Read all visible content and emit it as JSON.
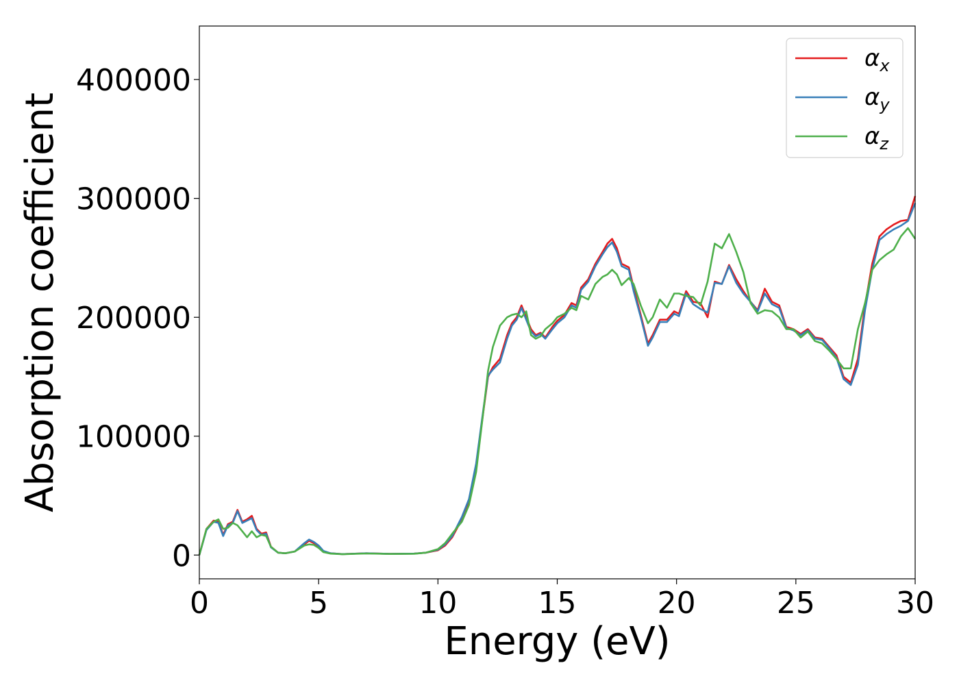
{
  "chart_data": {
    "type": "line",
    "xlabel": "Energy (eV)",
    "ylabel": "Absorption coefficient",
    "xlim": [
      0,
      30
    ],
    "ylim": [
      -20000,
      445000
    ],
    "xticks": [
      0,
      5,
      10,
      15,
      20,
      25,
      30
    ],
    "yticks": [
      0,
      100000,
      200000,
      300000,
      400000
    ],
    "grid": false,
    "legend_position": "top-right",
    "series": [
      {
        "name": "α",
        "subscript": "x",
        "color": "#e41a1c",
        "x": [
          0,
          0.3,
          0.6,
          0.8,
          1.0,
          1.2,
          1.4,
          1.6,
          1.8,
          2.0,
          2.2,
          2.4,
          2.6,
          2.8,
          3.0,
          3.3,
          3.6,
          4.0,
          4.4,
          4.6,
          4.8,
          5.0,
          5.2,
          5.5,
          6.0,
          7.0,
          8.0,
          9.0,
          9.5,
          10.0,
          10.3,
          10.6,
          11.0,
          11.3,
          11.6,
          11.9,
          12.1,
          12.3,
          12.6,
          12.9,
          13.1,
          13.3,
          13.5,
          13.7,
          13.9,
          14.1,
          14.3,
          14.5,
          14.8,
          15.0,
          15.3,
          15.6,
          15.8,
          16.0,
          16.3,
          16.6,
          16.9,
          17.1,
          17.3,
          17.5,
          17.7,
          18.0,
          18.2,
          18.5,
          18.8,
          19.0,
          19.3,
          19.6,
          19.9,
          20.1,
          20.4,
          20.7,
          21.0,
          21.3,
          21.6,
          21.9,
          22.2,
          22.5,
          22.8,
          23.1,
          23.4,
          23.7,
          24.0,
          24.3,
          24.6,
          24.9,
          25.2,
          25.5,
          25.8,
          26.1,
          26.4,
          26.7,
          27.0,
          27.3,
          27.6,
          27.9,
          28.2,
          28.5,
          28.8,
          29.1,
          29.4,
          29.7,
          30.0
        ],
        "values": [
          0,
          22000,
          29000,
          28000,
          17000,
          26000,
          28000,
          38000,
          28000,
          30000,
          33000,
          22000,
          18000,
          19000,
          7000,
          2000,
          1500,
          3000,
          9000,
          12000,
          10000,
          7000,
          3000,
          1500,
          800,
          1500,
          1000,
          1200,
          2000,
          4000,
          8000,
          15000,
          30000,
          45000,
          75000,
          120000,
          150000,
          158000,
          165000,
          185000,
          195000,
          200000,
          210000,
          200000,
          190000,
          185000,
          187000,
          183000,
          192000,
          197000,
          202000,
          212000,
          210000,
          225000,
          232000,
          245000,
          255000,
          262000,
          266000,
          258000,
          245000,
          242000,
          225000,
          202000,
          178000,
          185000,
          198000,
          198000,
          205000,
          203000,
          222000,
          213000,
          212000,
          200000,
          230000,
          228000,
          244000,
          232000,
          222000,
          213000,
          206000,
          224000,
          213000,
          210000,
          192000,
          190000,
          186000,
          190000,
          183000,
          182000,
          175000,
          168000,
          150000,
          145000,
          165000,
          210000,
          245000,
          268000,
          274000,
          278000,
          281000,
          282000,
          302000
        ]
      },
      {
        "name": "α",
        "subscript": "y",
        "color": "#377eb8",
        "x": [
          0,
          0.3,
          0.6,
          0.8,
          1.0,
          1.2,
          1.4,
          1.6,
          1.8,
          2.0,
          2.2,
          2.4,
          2.6,
          2.8,
          3.0,
          3.3,
          3.6,
          4.0,
          4.4,
          4.6,
          4.8,
          5.0,
          5.2,
          5.5,
          6.0,
          7.0,
          8.0,
          9.0,
          9.5,
          10.0,
          10.3,
          10.6,
          11.0,
          11.3,
          11.6,
          11.9,
          12.1,
          12.3,
          12.6,
          12.9,
          13.1,
          13.3,
          13.5,
          13.7,
          13.9,
          14.1,
          14.3,
          14.5,
          14.8,
          15.0,
          15.3,
          15.6,
          15.8,
          16.0,
          16.3,
          16.6,
          16.9,
          17.1,
          17.3,
          17.5,
          17.7,
          18.0,
          18.2,
          18.5,
          18.8,
          19.0,
          19.3,
          19.6,
          19.9,
          20.1,
          20.4,
          20.7,
          21.0,
          21.3,
          21.6,
          21.9,
          22.2,
          22.5,
          22.8,
          23.1,
          23.4,
          23.7,
          24.0,
          24.3,
          24.6,
          24.9,
          25.2,
          25.5,
          25.8,
          26.1,
          26.4,
          26.7,
          27.0,
          27.3,
          27.6,
          27.9,
          28.2,
          28.5,
          28.8,
          29.1,
          29.4,
          29.7,
          30.0
        ],
        "values": [
          0,
          21000,
          28000,
          27000,
          16000,
          25000,
          27000,
          37000,
          27000,
          29000,
          31000,
          21000,
          17000,
          18000,
          6500,
          2000,
          1500,
          3000,
          10000,
          13000,
          11000,
          8000,
          3500,
          1500,
          800,
          1500,
          1000,
          1200,
          2000,
          4500,
          9000,
          16000,
          32000,
          47000,
          77000,
          122000,
          151000,
          156000,
          162000,
          182000,
          193000,
          198000,
          208000,
          198000,
          188000,
          184000,
          186000,
          182000,
          190000,
          195000,
          200000,
          210000,
          208000,
          223000,
          230000,
          243000,
          253000,
          259000,
          263000,
          255000,
          243000,
          240000,
          222000,
          200000,
          176000,
          183000,
          196000,
          196000,
          203000,
          201000,
          220000,
          211000,
          207000,
          204000,
          229000,
          228000,
          243000,
          229000,
          220000,
          213000,
          205000,
          220000,
          211000,
          208000,
          191000,
          189000,
          185000,
          189000,
          182000,
          181000,
          174000,
          166000,
          148000,
          143000,
          160000,
          206000,
          240000,
          265000,
          270000,
          274000,
          277000,
          281000,
          296000
        ]
      },
      {
        "name": "α",
        "subscript": "z",
        "color": "#4daf4a",
        "x": [
          0,
          0.3,
          0.6,
          0.8,
          1.0,
          1.2,
          1.4,
          1.6,
          1.8,
          2.0,
          2.2,
          2.4,
          2.6,
          2.8,
          3.0,
          3.3,
          3.6,
          4.0,
          4.4,
          4.6,
          4.8,
          5.0,
          5.2,
          5.5,
          6.0,
          7.0,
          8.0,
          9.0,
          9.5,
          10.0,
          10.3,
          10.6,
          11.0,
          11.3,
          11.6,
          11.9,
          12.1,
          12.3,
          12.6,
          12.9,
          13.1,
          13.3,
          13.5,
          13.7,
          13.9,
          14.1,
          14.3,
          14.5,
          14.8,
          15.0,
          15.3,
          15.6,
          15.8,
          16.0,
          16.3,
          16.6,
          16.9,
          17.1,
          17.3,
          17.5,
          17.7,
          18.0,
          18.2,
          18.5,
          18.8,
          19.0,
          19.3,
          19.6,
          19.9,
          20.1,
          20.4,
          20.7,
          21.0,
          21.3,
          21.6,
          21.9,
          22.2,
          22.5,
          22.8,
          23.1,
          23.4,
          23.7,
          24.0,
          24.3,
          24.6,
          24.9,
          25.2,
          25.5,
          25.8,
          26.1,
          26.4,
          26.7,
          27.0,
          27.3,
          27.6,
          27.9,
          28.2,
          28.5,
          28.8,
          29.1,
          29.4,
          29.7,
          30.0
        ],
        "values": [
          0,
          22000,
          28000,
          30000,
          22000,
          23000,
          27000,
          25000,
          20000,
          15000,
          20000,
          15000,
          17000,
          16000,
          7000,
          2000,
          1500,
          3000,
          8000,
          9000,
          8500,
          6000,
          2500,
          1200,
          700,
          1300,
          900,
          1100,
          2000,
          5000,
          10000,
          18000,
          28000,
          42000,
          70000,
          120000,
          155000,
          175000,
          193000,
          200000,
          202000,
          203000,
          200000,
          205000,
          185000,
          182000,
          184000,
          190000,
          195000,
          200000,
          203000,
          208000,
          206000,
          218000,
          215000,
          228000,
          234000,
          236000,
          240000,
          236000,
          227000,
          233000,
          228000,
          210000,
          195000,
          200000,
          215000,
          208000,
          220000,
          220000,
          218000,
          217000,
          210000,
          230000,
          262000,
          258000,
          270000,
          255000,
          238000,
          212000,
          203000,
          206000,
          205000,
          200000,
          190000,
          190000,
          183000,
          188000,
          180000,
          178000,
          172000,
          165000,
          157000,
          157000,
          190000,
          212000,
          240000,
          248000,
          253000,
          257000,
          268000,
          275000,
          266000
        ]
      }
    ]
  }
}
